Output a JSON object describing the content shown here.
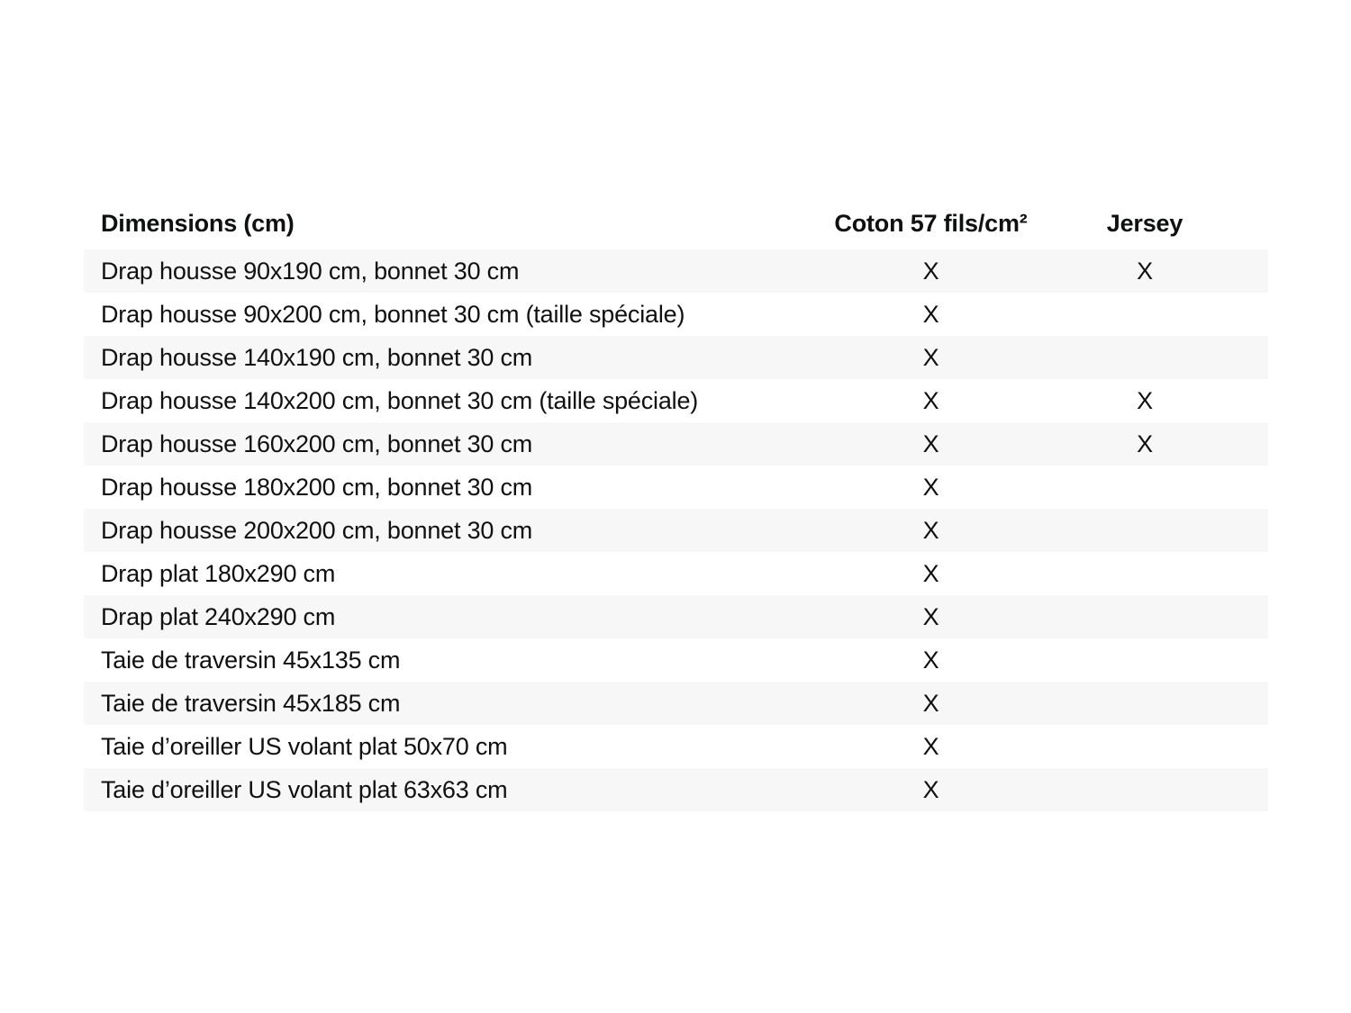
{
  "table": {
    "columns": [
      {
        "label": "Dimensions (cm)"
      },
      {
        "label": "Coton 57 fils/cm²"
      },
      {
        "label": "Jersey"
      }
    ],
    "mark_symbol": "X",
    "rows": [
      {
        "label": "Drap housse 90x190 cm, bonnet 30 cm",
        "coton": "X",
        "jersey": "X"
      },
      {
        "label": "Drap housse 90x200 cm, bonnet 30 cm (taille spéciale)",
        "coton": "X",
        "jersey": ""
      },
      {
        "label": "Drap housse 140x190 cm, bonnet 30 cm",
        "coton": "X",
        "jersey": ""
      },
      {
        "label": "Drap housse 140x200 cm, bonnet 30 cm (taille spéciale)",
        "coton": "X",
        "jersey": "X"
      },
      {
        "label": "Drap housse 160x200 cm, bonnet 30 cm",
        "coton": "X",
        "jersey": "X"
      },
      {
        "label": "Drap housse 180x200 cm, bonnet 30 cm",
        "coton": "X",
        "jersey": ""
      },
      {
        "label": "Drap housse 200x200 cm, bonnet 30 cm",
        "coton": "X",
        "jersey": ""
      },
      {
        "label": "Drap plat 180x290 cm",
        "coton": "X",
        "jersey": ""
      },
      {
        "label": "Drap plat 240x290 cm",
        "coton": "X",
        "jersey": ""
      },
      {
        "label": "Taie de traversin 45x135 cm",
        "coton": "X",
        "jersey": ""
      },
      {
        "label": "Taie de traversin 45x185 cm",
        "coton": "X",
        "jersey": ""
      },
      {
        "label": "Taie d’oreiller US volant plat 50x70 cm",
        "coton": "X",
        "jersey": ""
      },
      {
        "label": "Taie d’oreiller US volant plat 63x63 cm",
        "coton": "X",
        "jersey": ""
      }
    ],
    "colors": {
      "stripe": "#f7f7f7",
      "text": "#0f1111",
      "background": "#ffffff"
    }
  }
}
